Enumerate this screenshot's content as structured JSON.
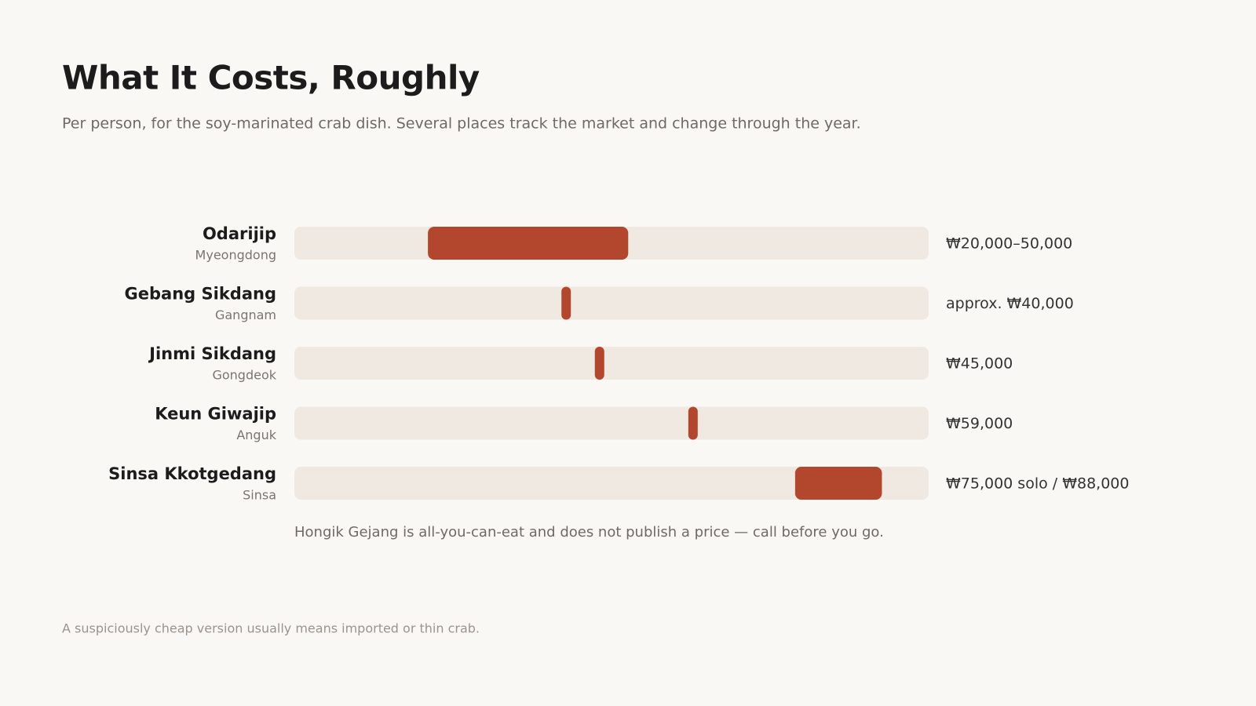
{
  "chart_data": {
    "type": "range",
    "title": "What It Costs, Roughly",
    "subtitle": "Per person, for the soy-marinated crab dish. Several places track the market and change through the year.",
    "categories": [
      "Odarijip",
      "Gebang Sikdang",
      "Jinmi Sikdang",
      "Keun Giwajip",
      "Sinsa Kkotgedang"
    ],
    "locations": [
      "Myeongdong",
      "Gangnam",
      "Gongdeok",
      "Anguk",
      "Sinsa"
    ],
    "low": [
      20000,
      40000,
      45000,
      59000,
      75000
    ],
    "high": [
      50000,
      null,
      null,
      null,
      88000
    ],
    "value_labels": [
      "₩20,000–50,000",
      "approx. ₩40,000",
      "₩45,000",
      "₩59,000",
      "₩75,000 solo / ₩88,000"
    ],
    "xlim": [
      0,
      95000
    ],
    "color": "#b3472e",
    "track_color": "#efe9e1",
    "note": "Hongik Gejang is all-you-can-eat and does not publish a price — call before you go.",
    "footnote": "A suspiciously cheap version usually means imported or thin crab."
  }
}
